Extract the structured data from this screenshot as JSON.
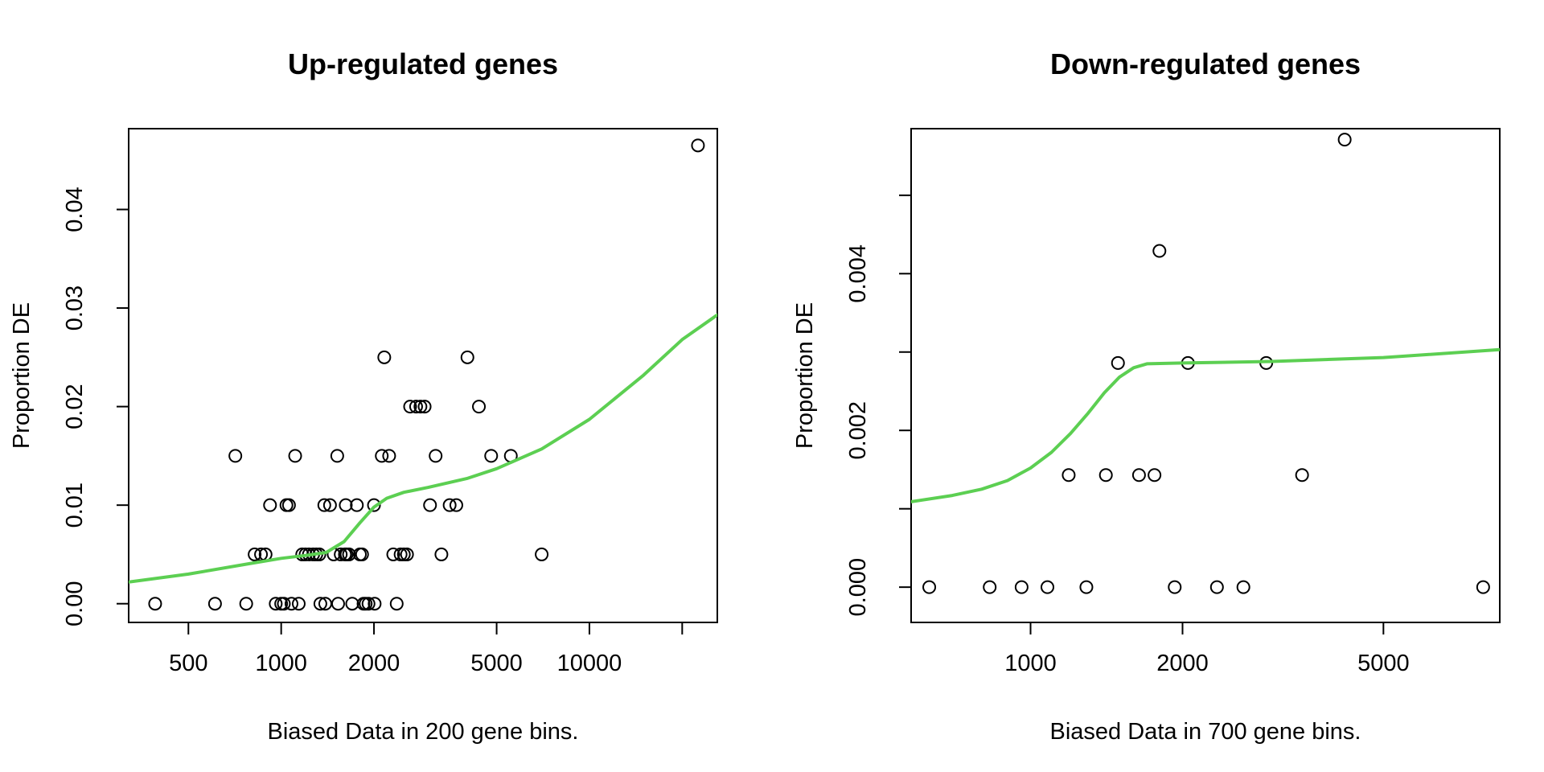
{
  "chart_data": [
    {
      "type": "scatter",
      "title": "Up-regulated genes",
      "xlabel": "Biased Data in 200 gene bins.",
      "ylabel": "Proportion DE",
      "x_scale": "log",
      "xlim": [
        320,
        26000
      ],
      "ylim": [
        -0.0019,
        0.0482
      ],
      "x_ticks": [
        500,
        1000,
        2000,
        5000,
        10000,
        20000
      ],
      "x_tick_labels": [
        "500",
        "1000",
        "2000",
        "5000",
        "10000",
        ""
      ],
      "y_ticks": [
        0,
        0.01,
        0.02,
        0.03,
        0.04
      ],
      "y_tick_labels": [
        "0.00",
        "0.01",
        "0.02",
        "0.03",
        "0.04"
      ],
      "grid": false,
      "legend": "none",
      "point_color": "#000000",
      "curve_color": "#5ccf52",
      "points": [
        [
          390,
          0
        ],
        [
          610,
          0
        ],
        [
          770,
          0
        ],
        [
          960,
          0
        ],
        [
          1000,
          0
        ],
        [
          1020,
          0
        ],
        [
          1080,
          0
        ],
        [
          1140,
          0
        ],
        [
          1340,
          0
        ],
        [
          1390,
          0
        ],
        [
          1530,
          0
        ],
        [
          1700,
          0
        ],
        [
          1850,
          0
        ],
        [
          1880,
          0
        ],
        [
          1920,
          0
        ],
        [
          2010,
          0
        ],
        [
          2370,
          0
        ],
        [
          820,
          0.005
        ],
        [
          860,
          0.005
        ],
        [
          890,
          0.005
        ],
        [
          1170,
          0.005
        ],
        [
          1200,
          0.005
        ],
        [
          1230,
          0.005
        ],
        [
          1270,
          0.005
        ],
        [
          1300,
          0.005
        ],
        [
          1330,
          0.005
        ],
        [
          1480,
          0.005
        ],
        [
          1560,
          0.005
        ],
        [
          1610,
          0.005
        ],
        [
          1630,
          0.005
        ],
        [
          1660,
          0.005
        ],
        [
          1800,
          0.005
        ],
        [
          1830,
          0.005
        ],
        [
          2310,
          0.005
        ],
        [
          2440,
          0.005
        ],
        [
          2500,
          0.005
        ],
        [
          2560,
          0.005
        ],
        [
          3310,
          0.005
        ],
        [
          7000,
          0.005
        ],
        [
          920,
          0.01
        ],
        [
          1040,
          0.01
        ],
        [
          1060,
          0.01
        ],
        [
          1380,
          0.01
        ],
        [
          1440,
          0.01
        ],
        [
          1620,
          0.01
        ],
        [
          1760,
          0.01
        ],
        [
          2000,
          0.01
        ],
        [
          3040,
          0.01
        ],
        [
          3520,
          0.01
        ],
        [
          3700,
          0.01
        ],
        [
          710,
          0.015
        ],
        [
          1110,
          0.015
        ],
        [
          1520,
          0.015
        ],
        [
          2120,
          0.015
        ],
        [
          2240,
          0.015
        ],
        [
          3170,
          0.015
        ],
        [
          4800,
          0.015
        ],
        [
          5560,
          0.015
        ],
        [
          2620,
          0.02
        ],
        [
          2740,
          0.02
        ],
        [
          2830,
          0.02
        ],
        [
          2920,
          0.02
        ],
        [
          4380,
          0.02
        ],
        [
          2160,
          0.025
        ],
        [
          4020,
          0.025
        ],
        [
          22500,
          0.0465
        ]
      ],
      "fit_curve": [
        [
          320,
          0.0022
        ],
        [
          500,
          0.003
        ],
        [
          800,
          0.0041
        ],
        [
          1000,
          0.0046
        ],
        [
          1200,
          0.0049
        ],
        [
          1400,
          0.0052
        ],
        [
          1600,
          0.0063
        ],
        [
          1800,
          0.0082
        ],
        [
          2000,
          0.0098
        ],
        [
          2200,
          0.0107
        ],
        [
          2500,
          0.0113
        ],
        [
          3000,
          0.0118
        ],
        [
          4000,
          0.0127
        ],
        [
          5000,
          0.0137
        ],
        [
          7000,
          0.0157
        ],
        [
          10000,
          0.0187
        ],
        [
          15000,
          0.0232
        ],
        [
          20000,
          0.0268
        ],
        [
          26000,
          0.0293
        ]
      ]
    },
    {
      "type": "scatter",
      "title": "Down-regulated genes",
      "xlabel": "Biased Data in 700 gene bins.",
      "ylabel": "Proportion DE",
      "x_scale": "log",
      "xlim": [
        580,
        8500
      ],
      "ylim": [
        -0.00045,
        0.00585
      ],
      "x_ticks": [
        1000,
        2000,
        5000
      ],
      "x_tick_labels": [
        "1000",
        "2000",
        "5000"
      ],
      "y_ticks": [
        0,
        0.001,
        0.002,
        0.003,
        0.004,
        0.005
      ],
      "y_tick_labels": [
        "0.000",
        "",
        "0.002",
        "",
        "0.004",
        ""
      ],
      "grid": false,
      "legend": "none",
      "point_color": "#000000",
      "curve_color": "#5ccf52",
      "points": [
        [
          630,
          0
        ],
        [
          830,
          0
        ],
        [
          960,
          0
        ],
        [
          1080,
          0
        ],
        [
          1290,
          0
        ],
        [
          1930,
          0
        ],
        [
          2340,
          0
        ],
        [
          2640,
          0
        ],
        [
          7880,
          0
        ],
        [
          1190,
          0.00143
        ],
        [
          1410,
          0.00143
        ],
        [
          1640,
          0.00143
        ],
        [
          1760,
          0.00143
        ],
        [
          3450,
          0.00143
        ],
        [
          1490,
          0.00286
        ],
        [
          2050,
          0.00286
        ],
        [
          2930,
          0.00286
        ],
        [
          1800,
          0.00429
        ],
        [
          4190,
          0.00571
        ]
      ],
      "fit_curve": [
        [
          580,
          0.00109
        ],
        [
          700,
          0.00117
        ],
        [
          800,
          0.00125
        ],
        [
          900,
          0.00136
        ],
        [
          1000,
          0.00152
        ],
        [
          1100,
          0.00172
        ],
        [
          1200,
          0.00196
        ],
        [
          1300,
          0.00222
        ],
        [
          1400,
          0.00248
        ],
        [
          1500,
          0.00268
        ],
        [
          1600,
          0.0028
        ],
        [
          1700,
          0.00285
        ],
        [
          2000,
          0.00286
        ],
        [
          3000,
          0.00288
        ],
        [
          5000,
          0.00293
        ],
        [
          8500,
          0.00303
        ]
      ]
    }
  ]
}
